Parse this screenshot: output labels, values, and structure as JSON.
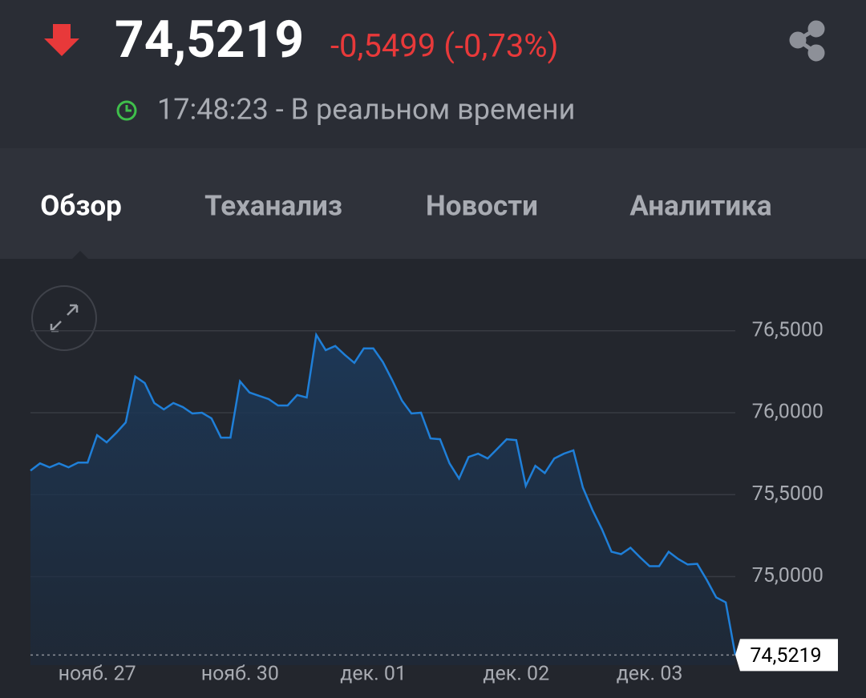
{
  "header": {
    "price": "74,5219",
    "change": "-0,5499 (-0,73%)",
    "time_status": "17:48:23 - В реальном времени"
  },
  "tabs": [
    "Обзор",
    "Теханализ",
    "Новости",
    "Аналитика"
  ],
  "chart_data": {
    "type": "area",
    "color": "#1f7fd8",
    "categories": [
      null,
      null,
      null,
      null,
      null,
      null,
      null,
      "нояб. 27",
      null,
      null,
      null,
      null,
      null,
      null,
      null,
      null,
      null,
      null,
      null,
      null,
      null,
      null,
      "нояб. 30",
      null,
      null,
      null,
      null,
      null,
      null,
      null,
      null,
      null,
      null,
      null,
      null,
      null,
      "дек. 01",
      null,
      null,
      null,
      null,
      null,
      null,
      null,
      null,
      null,
      null,
      null,
      null,
      null,
      null,
      "дек. 02",
      null,
      null,
      null,
      null,
      null,
      null,
      null,
      null,
      null,
      null,
      null,
      null,
      null,
      "дек. 03",
      null,
      null,
      null,
      null,
      null,
      null,
      null,
      null,
      null
    ],
    "values": [
      75.647,
      75.691,
      75.667,
      75.691,
      75.667,
      75.696,
      75.696,
      75.863,
      75.819,
      75.877,
      75.941,
      76.221,
      76.181,
      76.059,
      76.02,
      76.059,
      76.034,
      75.995,
      76.0,
      75.966,
      75.848,
      75.848,
      76.191,
      76.123,
      76.103,
      76.083,
      76.044,
      76.044,
      76.108,
      76.093,
      76.475,
      76.382,
      76.407,
      76.353,
      76.304,
      76.392,
      76.392,
      76.309,
      76.196,
      76.074,
      75.995,
      76.0,
      75.843,
      75.838,
      75.691,
      75.598,
      75.73,
      75.75,
      75.721,
      75.779,
      75.838,
      75.833,
      75.554,
      75.676,
      75.632,
      75.721,
      75.75,
      75.77,
      75.544,
      75.407,
      75.289,
      75.152,
      75.137,
      75.176,
      75.118,
      75.064,
      75.064,
      75.152,
      75.108,
      75.074,
      75.078,
      74.98,
      74.873,
      74.843,
      74.5219
    ],
    "value_labels": [
      null,
      null,
      null,
      null,
      null,
      null,
      null,
      null,
      null,
      null,
      null,
      null,
      null,
      null,
      null,
      null,
      null,
      null,
      null,
      null,
      null,
      null,
      null,
      null,
      null,
      null,
      null,
      null,
      null,
      null,
      null,
      null,
      null,
      null,
      null,
      null,
      null,
      null,
      null,
      null,
      null,
      null,
      null,
      null,
      null,
      null,
      null,
      null,
      null,
      null,
      null,
      null,
      null,
      null,
      null,
      null,
      null,
      null,
      null,
      null,
      null,
      null,
      null,
      null,
      null,
      null,
      null,
      null,
      null,
      null,
      null,
      null,
      null,
      null,
      "74,5219"
    ],
    "ylim": [
      74.46,
      76.88
    ],
    "yticks": [
      {
        "value": 75,
        "label": "75,0000"
      },
      {
        "value": 75.5,
        "label": "75,5000"
      },
      {
        "value": 76,
        "label": "76,0000"
      },
      {
        "value": 76.5,
        "label": "76,5000"
      }
    ],
    "grid": true
  }
}
